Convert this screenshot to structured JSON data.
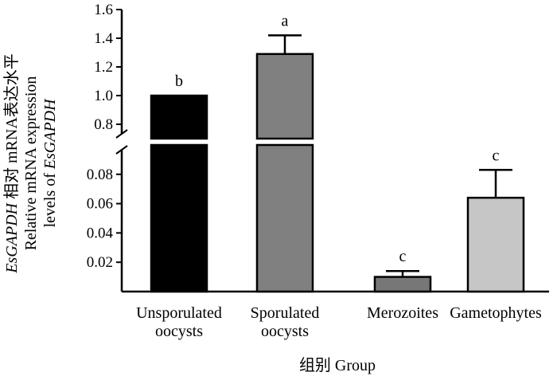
{
  "chart_data": {
    "type": "bar",
    "broken_y_axis": true,
    "categories": [
      "Unsporulated\noocysts",
      "Sporulated\noocysts",
      "Merozoites",
      "Gametophytes"
    ],
    "values": [
      1.0,
      1.29,
      0.01,
      0.064
    ],
    "errors": [
      0,
      0.13,
      0.004,
      0.019
    ],
    "significance": [
      "b",
      "a",
      "c",
      "c"
    ],
    "colors": [
      "#000000",
      "#808080",
      "#777777",
      "#c6c6c6"
    ],
    "segments": {
      "lower": {
        "ylim": [
          0,
          0.1
        ],
        "ticks": [
          "0.02",
          "0.04",
          "0.06",
          "0.08"
        ]
      },
      "upper": {
        "ylim": [
          0.7,
          1.6
        ],
        "ticks": [
          "0.8",
          "1.0",
          "1.2",
          "1.4",
          "1.6"
        ]
      }
    },
    "xlabel": "组别 Group",
    "ylabel": {
      "line1_italic": "EsGAPDH",
      "line1_rest": " 相对 mRNA表达水平",
      "line2": "Relative mRNA expression",
      "line3_prefix": "levels of ",
      "line3_italic": "EsGAPDH"
    }
  }
}
